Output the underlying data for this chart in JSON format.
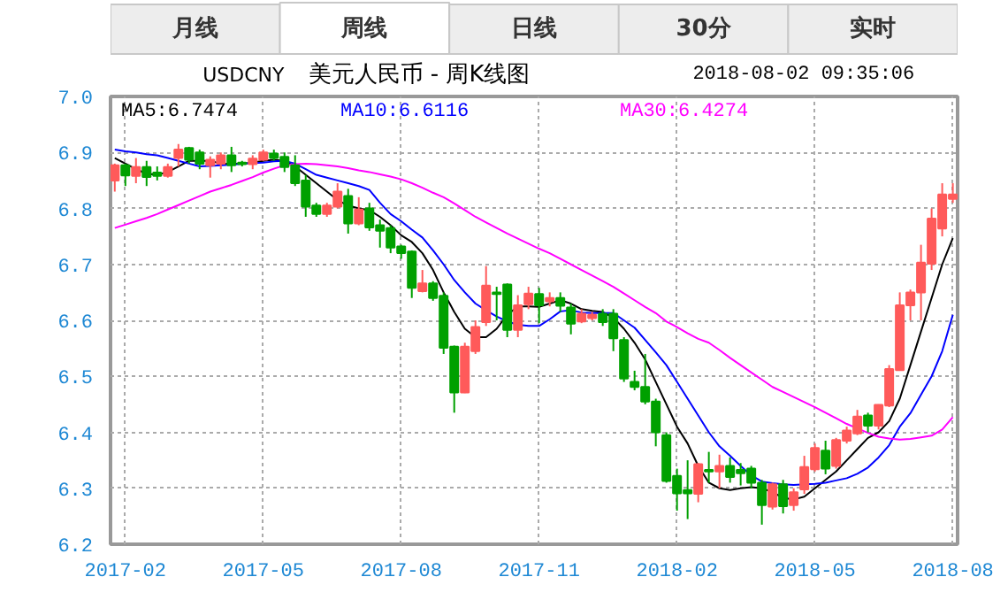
{
  "chart_data": {
    "type": "candlestick",
    "title": "美元人民币 - 周K线图",
    "annotations": [
      "月线",
      "周线",
      "日线",
      "30分",
      "实时",
      "USDCNY",
      "2018-08-02 09:35:06"
    ],
    "categories": [
      null,
      "2017-02",
      null,
      null,
      null,
      null,
      null,
      null,
      null,
      null,
      null,
      null,
      null,
      null,
      "2017-05",
      null,
      null,
      null,
      null,
      null,
      null,
      null,
      null,
      null,
      null,
      null,
      null,
      "2017-08",
      null,
      null,
      null,
      null,
      null,
      null,
      null,
      null,
      null,
      null,
      null,
      null,
      "2017-11",
      null,
      null,
      null,
      null,
      null,
      null,
      null,
      null,
      null,
      null,
      null,
      null,
      "2018-02",
      null,
      null,
      null,
      null,
      null,
      null,
      null,
      null,
      null,
      null,
      null,
      null,
      "2018-05",
      null,
      null,
      null,
      null,
      null,
      null,
      null,
      null,
      null,
      null,
      null,
      null,
      "2018-08"
    ],
    "ohlc": [
      [
        6.85,
        6.88,
        6.83,
        6.877
      ],
      [
        6.877,
        6.88,
        6.84,
        6.859
      ],
      [
        6.858,
        6.89,
        6.845,
        6.874
      ],
      [
        6.874,
        6.885,
        6.84,
        6.856
      ],
      [
        6.864,
        6.875,
        6.85,
        6.858
      ],
      [
        6.858,
        6.88,
        6.855,
        6.874
      ],
      [
        6.89,
        6.915,
        6.875,
        6.905
      ],
      [
        6.908,
        6.91,
        6.88,
        6.887
      ],
      [
        6.9,
        6.905,
        6.87,
        6.88
      ],
      [
        6.877,
        6.893,
        6.855,
        6.887
      ],
      [
        6.88,
        6.9,
        6.87,
        6.895
      ],
      [
        6.895,
        6.91,
        6.865,
        6.877
      ],
      [
        6.882,
        6.885,
        6.875,
        6.879
      ],
      [
        6.879,
        6.895,
        6.87,
        6.889
      ],
      [
        6.887,
        6.905,
        6.885,
        6.9
      ],
      [
        6.898,
        6.905,
        6.885,
        6.89
      ],
      [
        6.892,
        6.9,
        6.865,
        6.874
      ],
      [
        6.877,
        6.895,
        6.84,
        6.845
      ],
      [
        6.85,
        6.86,
        6.785,
        6.803
      ],
      [
        6.805,
        6.81,
        6.785,
        6.79
      ],
      [
        6.79,
        6.81,
        6.785,
        6.805
      ],
      [
        6.803,
        6.845,
        6.8,
        6.83
      ],
      [
        6.822,
        6.835,
        6.755,
        6.773
      ],
      [
        6.773,
        6.82,
        6.77,
        6.798
      ],
      [
        6.8,
        6.81,
        6.76,
        6.766
      ],
      [
        6.77,
        6.78,
        6.73,
        6.76
      ],
      [
        6.765,
        6.77,
        6.72,
        6.73
      ],
      [
        6.732,
        6.735,
        6.71,
        6.72
      ],
      [
        6.723,
        6.725,
        6.64,
        6.658
      ],
      [
        6.652,
        6.69,
        6.65,
        6.666
      ],
      [
        6.666,
        6.67,
        6.635,
        6.64
      ],
      [
        6.644,
        6.65,
        6.54,
        6.551
      ],
      [
        6.553,
        6.555,
        6.435,
        6.471
      ],
      [
        6.471,
        6.56,
        6.47,
        6.553
      ],
      [
        6.545,
        6.6,
        6.54,
        6.588
      ],
      [
        6.597,
        6.697,
        6.59,
        6.662
      ],
      [
        6.65,
        6.66,
        6.6,
        6.647
      ],
      [
        6.664,
        6.666,
        6.57,
        6.583
      ],
      [
        6.583,
        6.645,
        6.57,
        6.627
      ],
      [
        6.629,
        6.66,
        6.62,
        6.648
      ],
      [
        6.647,
        6.658,
        6.595,
        6.627
      ],
      [
        6.634,
        6.65,
        6.625,
        6.64
      ],
      [
        6.64,
        6.65,
        6.615,
        6.626
      ],
      [
        6.623,
        6.63,
        6.575,
        6.594
      ],
      [
        6.598,
        6.62,
        6.595,
        6.612
      ],
      [
        6.604,
        6.615,
        6.6,
        6.61
      ],
      [
        6.612,
        6.62,
        6.59,
        6.597
      ],
      [
        6.612,
        6.62,
        6.545,
        6.568
      ],
      [
        6.565,
        6.57,
        6.49,
        6.496
      ],
      [
        6.49,
        6.51,
        6.475,
        6.481
      ],
      [
        6.481,
        6.54,
        6.45,
        6.455
      ],
      [
        6.455,
        6.46,
        6.375,
        6.4
      ],
      [
        6.395,
        6.4,
        6.31,
        6.313
      ],
      [
        6.322,
        6.335,
        6.26,
        6.291
      ],
      [
        6.297,
        6.35,
        6.245,
        6.291
      ],
      [
        6.29,
        6.345,
        6.275,
        6.343
      ],
      [
        6.333,
        6.365,
        6.31,
        6.33
      ],
      [
        6.33,
        6.36,
        6.3,
        6.34
      ],
      [
        6.34,
        6.355,
        6.31,
        6.32
      ],
      [
        6.333,
        6.345,
        6.305,
        6.327
      ],
      [
        6.335,
        6.34,
        6.3,
        6.31
      ],
      [
        6.31,
        6.315,
        6.235,
        6.27
      ],
      [
        6.267,
        6.31,
        6.262,
        6.307
      ],
      [
        6.307,
        6.315,
        6.255,
        6.268
      ],
      [
        6.27,
        6.3,
        6.26,
        6.293
      ],
      [
        6.298,
        6.358,
        6.29,
        6.338
      ],
      [
        6.334,
        6.38,
        6.33,
        6.372
      ],
      [
        6.367,
        6.385,
        6.325,
        6.335
      ],
      [
        6.34,
        6.39,
        6.335,
        6.386
      ],
      [
        6.385,
        6.41,
        6.38,
        6.403
      ],
      [
        6.398,
        6.44,
        6.395,
        6.428
      ],
      [
        6.43,
        6.435,
        6.4,
        6.412
      ],
      [
        6.412,
        6.45,
        6.405,
        6.449
      ],
      [
        6.448,
        6.52,
        6.445,
        6.513
      ],
      [
        6.511,
        6.65,
        6.51,
        6.627
      ],
      [
        6.627,
        6.655,
        6.6,
        6.65
      ],
      [
        6.65,
        6.735,
        6.6,
        6.703
      ],
      [
        6.701,
        6.8,
        6.69,
        6.782
      ],
      [
        6.764,
        6.845,
        6.75,
        6.825
      ],
      [
        6.817,
        6.845,
        6.81,
        6.825
      ]
    ],
    "colors": [
      "#ff5a5a",
      "#00a000",
      "#ff5a5a",
      "#00a000",
      "#00a000",
      "#ff5a5a",
      "#ff5a5a",
      "#00a000",
      "#00a000",
      "#ff5a5a",
      "#ff5a5a",
      "#00a000",
      "#00a000",
      "#ff5a5a",
      "#ff5a5a",
      "#00a000",
      "#00a000",
      "#00a000",
      "#00a000",
      "#00a000",
      "#ff5a5a",
      "#ff5a5a",
      "#00a000",
      "#ff5a5a",
      "#00a000",
      "#00a000",
      "#00a000",
      "#00a000",
      "#00a000",
      "#ff5a5a",
      "#00a000",
      "#00a000",
      "#00a000",
      "#ff5a5a",
      "#ff5a5a",
      "#ff5a5a",
      "#00a000",
      "#00a000",
      "#ff5a5a",
      "#ff5a5a",
      "#00a000",
      "#ff5a5a",
      "#00a000",
      "#00a000",
      "#ff5a5a",
      "#ff5a5a",
      "#00a000",
      "#00a000",
      "#00a000",
      "#00a000",
      "#00a000",
      "#00a000",
      "#00a000",
      "#00a000",
      "#00a000",
      "#ff5a5a",
      "#00a000",
      "#ff5a5a",
      "#00a000",
      "#00a000",
      "#00a000",
      "#00a000",
      "#ff5a5a",
      "#00a000",
      "#ff5a5a",
      "#ff5a5a",
      "#ff5a5a",
      "#00a000",
      "#ff5a5a",
      "#ff5a5a",
      "#ff5a5a",
      "#00a000",
      "#ff5a5a",
      "#ff5a5a",
      "#ff5a5a",
      "#ff5a5a",
      "#ff5a5a",
      "#ff5a5a",
      "#ff5a5a",
      "#ff5a5a"
    ],
    "series": [
      {
        "name": "MA5:6.7474",
        "type": "line",
        "color": "#000000",
        "values": [
          6.89,
          6.88,
          6.87,
          6.862,
          6.86,
          6.865,
          6.875,
          6.885,
          6.885,
          6.885,
          6.88,
          6.88,
          6.88,
          6.882,
          6.885,
          6.887,
          6.885,
          6.875,
          6.86,
          6.845,
          6.83,
          6.815,
          6.805,
          6.8,
          6.797,
          6.785,
          6.77,
          6.752,
          6.74,
          6.72,
          6.69,
          6.65,
          6.615,
          6.585,
          6.57,
          6.57,
          6.585,
          6.61,
          6.625,
          6.625,
          6.624,
          6.63,
          6.636,
          6.63,
          6.62,
          6.617,
          6.615,
          6.605,
          6.585,
          6.56,
          6.53,
          6.49,
          6.45,
          6.41,
          6.38,
          6.34,
          6.31,
          6.3,
          6.297,
          6.3,
          6.302,
          6.3,
          6.293,
          6.283,
          6.28,
          6.285,
          6.3,
          6.315,
          6.33,
          6.35,
          6.37,
          6.39,
          6.4,
          6.42,
          6.46,
          6.52,
          6.58,
          6.64,
          6.7,
          6.747
        ]
      },
      {
        "name": "MA10:6.6116",
        "type": "line",
        "color": "#0000ff",
        "values": [
          6.905,
          6.902,
          6.9,
          6.897,
          6.895,
          6.89,
          6.885,
          6.88,
          6.875,
          6.876,
          6.877,
          6.878,
          6.88,
          6.881,
          6.882,
          6.884,
          6.885,
          6.88,
          6.87,
          6.86,
          6.855,
          6.85,
          6.845,
          6.84,
          6.833,
          6.81,
          6.79,
          6.777,
          6.762,
          6.748,
          6.725,
          6.7,
          6.672,
          6.65,
          6.63,
          6.618,
          6.607,
          6.598,
          6.592,
          6.59,
          6.59,
          6.602,
          6.616,
          6.618,
          6.614,
          6.613,
          6.613,
          6.613,
          6.6,
          6.587,
          6.565,
          6.543,
          6.52,
          6.49,
          6.46,
          6.43,
          6.4,
          6.375,
          6.358,
          6.34,
          6.323,
          6.312,
          6.309,
          6.307,
          6.306,
          6.307,
          6.308,
          6.31,
          6.314,
          6.318,
          6.326,
          6.337,
          6.355,
          6.377,
          6.41,
          6.434,
          6.467,
          6.5,
          6.545,
          6.61
        ]
      },
      {
        "name": "MA30:6.4274",
        "type": "line",
        "color": "#ff00ff",
        "values": [
          6.765,
          6.771,
          6.777,
          6.783,
          6.79,
          6.798,
          6.806,
          6.814,
          6.822,
          6.83,
          6.836,
          6.842,
          6.849,
          6.856,
          6.864,
          6.871,
          6.877,
          6.879,
          6.88,
          6.879,
          6.877,
          6.875,
          6.872,
          6.868,
          6.865,
          6.861,
          6.857,
          6.852,
          6.845,
          6.837,
          6.828,
          6.82,
          6.809,
          6.797,
          6.785,
          6.775,
          6.765,
          6.755,
          6.746,
          6.737,
          6.728,
          6.72,
          6.71,
          6.7,
          6.69,
          6.68,
          6.67,
          6.66,
          6.648,
          6.636,
          6.624,
          6.613,
          6.598,
          6.588,
          6.577,
          6.567,
          6.56,
          6.547,
          6.533,
          6.52,
          6.507,
          6.494,
          6.481,
          6.472,
          6.463,
          6.454,
          6.445,
          6.435,
          6.425,
          6.415,
          6.407,
          6.399,
          6.392,
          6.389,
          6.387,
          6.388,
          6.391,
          6.394,
          6.405,
          6.427
        ]
      }
    ],
    "ylim": [
      6.2,
      7.0
    ],
    "yticks": [
      6.2,
      6.3,
      6.4,
      6.5,
      6.6,
      6.7,
      6.8,
      6.9,
      {
        "value": 7.0,
        "label": "7.0"
      }
    ],
    "grid": true
  }
}
